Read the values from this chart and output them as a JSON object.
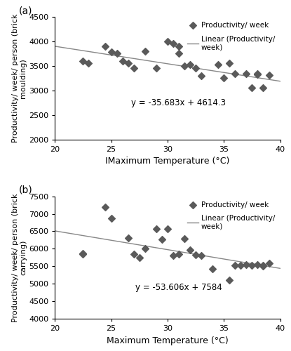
{
  "panel_a": {
    "scatter_x": [
      22.5,
      23.0,
      24.5,
      25.0,
      25.5,
      26.0,
      26.5,
      27.0,
      28.0,
      29.0,
      30.0,
      30.5,
      31.0,
      31.0,
      31.5,
      32.0,
      32.5,
      33.0,
      34.5,
      35.0,
      35.5,
      36.0,
      37.0,
      37.5,
      38.0,
      38.0,
      38.5,
      39.0
    ],
    "scatter_y": [
      3600,
      3560,
      3900,
      3780,
      3750,
      3600,
      3550,
      3460,
      3800,
      3450,
      4000,
      3950,
      3900,
      3750,
      3500,
      3520,
      3450,
      3300,
      3530,
      3250,
      3560,
      3340,
      3340,
      3050,
      3340,
      3320,
      3050,
      3310
    ],
    "slope": -35.683,
    "intercept": 4614.3,
    "xlabel": "IMaximum Temperature (°C)",
    "ylabel": "Productivity/ week/ person (brick\nmoulding)",
    "equation": "y = -35.683x + 4614.3",
    "eq_x": 31,
    "eq_y": 2750,
    "xlim": [
      20,
      40
    ],
    "ylim": [
      2000,
      4500
    ],
    "yticks": [
      2000,
      2500,
      3000,
      3500,
      4000,
      4500
    ],
    "xticks": [
      20,
      25,
      30,
      35,
      40
    ],
    "label": "(a)"
  },
  "panel_b": {
    "scatter_x": [
      22.5,
      22.5,
      24.5,
      25.0,
      26.5,
      27.0,
      27.5,
      28.0,
      29.0,
      29.5,
      30.0,
      30.5,
      31.0,
      31.5,
      32.0,
      32.5,
      33.0,
      34.0,
      35.5,
      36.0,
      36.5,
      37.0,
      37.5,
      38.0,
      38.5,
      38.5,
      39.0
    ],
    "scatter_y": [
      5850,
      5870,
      7200,
      6880,
      6300,
      5850,
      5750,
      6000,
      6560,
      6270,
      6560,
      5800,
      5850,
      6280,
      5960,
      5820,
      5810,
      5420,
      5100,
      5520,
      5520,
      5540,
      5520,
      5540,
      5500,
      5520,
      5580
    ],
    "slope": -53.606,
    "intercept": 7584,
    "xlabel": "Maximum Temperature (°C)",
    "ylabel": "Productivity/ week/ person (brick\ncarrying)",
    "equation": "y = -53.606x + 7584",
    "eq_x": 31,
    "eq_y": 4900,
    "xlim": [
      20,
      40
    ],
    "ylim": [
      4000,
      7500
    ],
    "yticks": [
      4000,
      4500,
      5000,
      5500,
      6000,
      6500,
      7000,
      7500
    ],
    "xticks": [
      20,
      25,
      30,
      35,
      40
    ],
    "label": "(b)"
  },
  "scatter_color": "#5a5a5a",
  "line_color": "#888888",
  "marker": "D",
  "marker_size": 25,
  "legend_marker_label": "Productivity/ week",
  "legend_line_label": "Linear (Productivity/\nweek)"
}
